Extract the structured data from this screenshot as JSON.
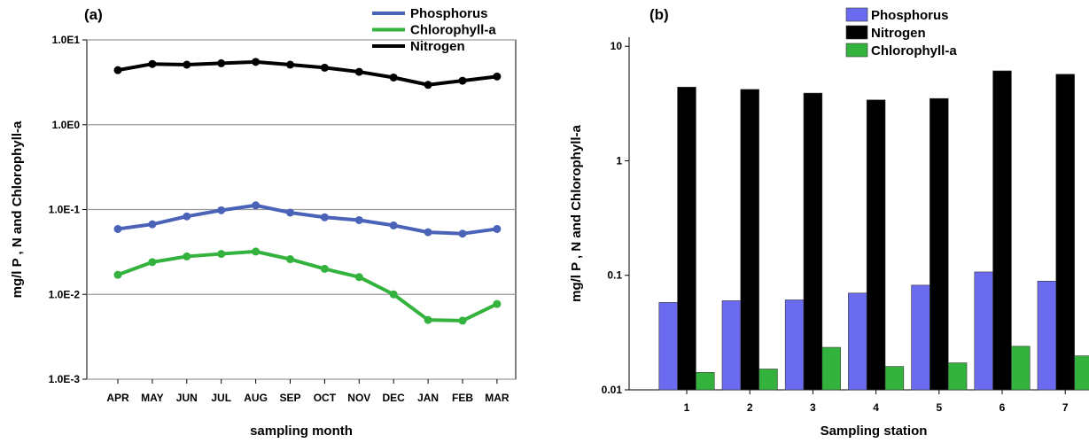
{
  "chart_data": [
    {
      "type": "line",
      "panel_label": "(a)",
      "xlabel": "sampling month",
      "ylabel": "mg/l  P , N and Chlorophyll-a",
      "yscale": "log",
      "ylim": [
        0.001,
        10
      ],
      "ytick_values": [
        10,
        1,
        0.1,
        0.01,
        0.001
      ],
      "ytick_labels": [
        "1.0E1",
        "1.0E0",
        "1.0E-1",
        "1.0E-2",
        "1.0E-3"
      ],
      "grid": "horizontal",
      "legend_position": "top-right",
      "categories": [
        "APR",
        "MAY",
        "JUN",
        "JUL",
        "AUG",
        "SEP",
        "OCT",
        "NOV",
        "DEC",
        "JAN",
        "FEB",
        "MAR"
      ],
      "series": [
        {
          "name": "Phosphorus",
          "color": "#4a62b8",
          "values": [
            0.059,
            0.067,
            0.083,
            0.098,
            0.112,
            0.092,
            0.081,
            0.075,
            0.065,
            0.054,
            0.052,
            0.059
          ]
        },
        {
          "name": "Chlorophyll-a",
          "color": "#33b33d",
          "values": [
            0.017,
            0.024,
            0.028,
            0.03,
            0.032,
            0.026,
            0.02,
            0.016,
            0.01,
            0.005,
            0.0049,
            0.0077
          ]
        },
        {
          "name": "Nitrogen",
          "color": "#000000",
          "values": [
            4.4,
            5.2,
            5.1,
            5.3,
            5.5,
            5.1,
            4.7,
            4.2,
            3.6,
            2.95,
            3.3,
            3.7
          ]
        }
      ]
    },
    {
      "type": "bar",
      "panel_label": "(b)",
      "xlabel": "Sampling station",
      "ylabel": "mg/l  P , N and Chlorophyll-a",
      "yscale": "log",
      "ylim": [
        0.01,
        12
      ],
      "ytick_values": [
        10,
        1,
        0.1,
        0.01
      ],
      "ytick_labels": [
        "10",
        "1",
        "0.1",
        "0.01"
      ],
      "grid": "none",
      "legend_position": "top-right",
      "categories": [
        "1",
        "2",
        "3",
        "4",
        "5",
        "6",
        "7"
      ],
      "series": [
        {
          "name": "Phosphorus",
          "color": "#6b6bef",
          "values": [
            0.058,
            0.06,
            0.061,
            0.07,
            0.082,
            0.107,
            0.089
          ]
        },
        {
          "name": "Nitrogen",
          "color": "#000000",
          "values": [
            4.4,
            4.2,
            3.9,
            3.4,
            3.5,
            6.1,
            5.7
          ]
        },
        {
          "name": "Chlorophyll-a",
          "color": "#33b33d",
          "values": [
            0.0142,
            0.0152,
            0.0235,
            0.016,
            0.0172,
            0.024,
            0.0198
          ]
        }
      ]
    }
  ]
}
